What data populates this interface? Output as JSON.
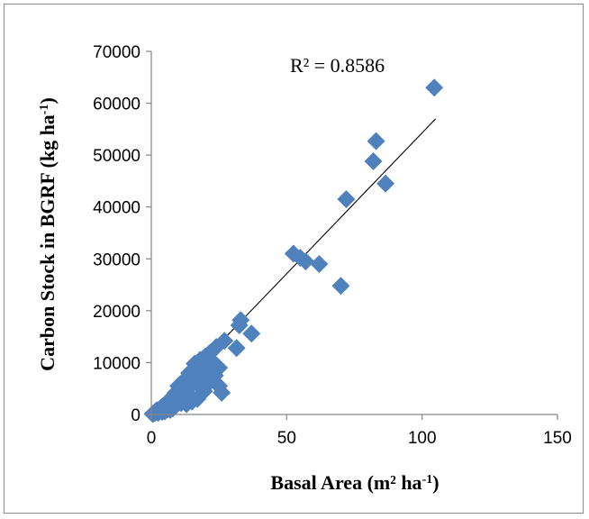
{
  "chart_data": {
    "type": "scatter",
    "title": "",
    "xlabel": "Basal Area (m² ha",
    "xlabel_sup": "-1",
    "xlabel_end": ")",
    "ylabel": "Carbon Stock in BGRF (kg ha",
    "ylabel_sup": "-1",
    "ylabel_end": ")",
    "xlim": [
      0,
      150
    ],
    "ylim": [
      0,
      70000
    ],
    "xticks": [
      0,
      50,
      100,
      150
    ],
    "yticks": [
      0,
      10000,
      20000,
      30000,
      40000,
      50000,
      60000,
      70000
    ],
    "grid": false,
    "legend": "none",
    "marker": "diamond",
    "marker_color": "#4f81bd",
    "trendline": {
      "type": "linear",
      "x": [
        0,
        105
      ],
      "y": [
        0,
        57000
      ],
      "color": "#000000"
    },
    "annotation": "R² = 0.8586",
    "points": [
      {
        "x": 104.5,
        "y": 63000
      },
      {
        "x": 83,
        "y": 52700
      },
      {
        "x": 82,
        "y": 48800
      },
      {
        "x": 86.5,
        "y": 44500
      },
      {
        "x": 72,
        "y": 41500
      },
      {
        "x": 52.5,
        "y": 31000
      },
      {
        "x": 55,
        "y": 30200
      },
      {
        "x": 57,
        "y": 29500
      },
      {
        "x": 62,
        "y": 29000
      },
      {
        "x": 70,
        "y": 24800
      },
      {
        "x": 33,
        "y": 18200
      },
      {
        "x": 32.5,
        "y": 17200
      },
      {
        "x": 37,
        "y": 15600
      },
      {
        "x": 27,
        "y": 14200
      },
      {
        "x": 31.5,
        "y": 12800
      },
      {
        "x": 24,
        "y": 13000
      },
      {
        "x": 22,
        "y": 12000
      },
      {
        "x": 20,
        "y": 11200
      },
      {
        "x": 23,
        "y": 10000
      },
      {
        "x": 25,
        "y": 9000
      },
      {
        "x": 21,
        "y": 8500
      },
      {
        "x": 23.5,
        "y": 7500
      },
      {
        "x": 22,
        "y": 6500
      },
      {
        "x": 25,
        "y": 5500
      },
      {
        "x": 26,
        "y": 4200
      },
      {
        "x": 18,
        "y": 10500
      },
      {
        "x": 16,
        "y": 9800
      },
      {
        "x": 17,
        "y": 8500
      },
      {
        "x": 14,
        "y": 8000
      },
      {
        "x": 15,
        "y": 7000
      },
      {
        "x": 19,
        "y": 7500
      },
      {
        "x": 18,
        "y": 5500
      },
      {
        "x": 19.5,
        "y": 4500
      },
      {
        "x": 17,
        "y": 3000
      },
      {
        "x": 12,
        "y": 6500
      },
      {
        "x": 13,
        "y": 5200
      },
      {
        "x": 11,
        "y": 4500
      },
      {
        "x": 14,
        "y": 3800
      },
      {
        "x": 12,
        "y": 2800
      },
      {
        "x": 13,
        "y": 2000
      },
      {
        "x": 10,
        "y": 5500
      },
      {
        "x": 9,
        "y": 4200
      },
      {
        "x": 10,
        "y": 3200
      },
      {
        "x": 11,
        "y": 2200
      },
      {
        "x": 8,
        "y": 3500
      },
      {
        "x": 7,
        "y": 2800
      },
      {
        "x": 9,
        "y": 1800
      },
      {
        "x": 8,
        "y": 1200
      },
      {
        "x": 6,
        "y": 2400
      },
      {
        "x": 5,
        "y": 1800
      },
      {
        "x": 6,
        "y": 1000
      },
      {
        "x": 4,
        "y": 1500
      },
      {
        "x": 3,
        "y": 1000
      },
      {
        "x": 4,
        "y": 500
      },
      {
        "x": 2,
        "y": 800
      },
      {
        "x": 1.5,
        "y": 400
      },
      {
        "x": 1,
        "y": 200
      },
      {
        "x": 0.5,
        "y": 100
      },
      {
        "x": 2.5,
        "y": 300
      },
      {
        "x": 5,
        "y": 600
      },
      {
        "x": 7,
        "y": 900
      },
      {
        "x": 15,
        "y": 2500
      },
      {
        "x": 16,
        "y": 6200
      },
      {
        "x": 20,
        "y": 9300
      },
      {
        "x": 21.5,
        "y": 11800
      }
    ]
  }
}
